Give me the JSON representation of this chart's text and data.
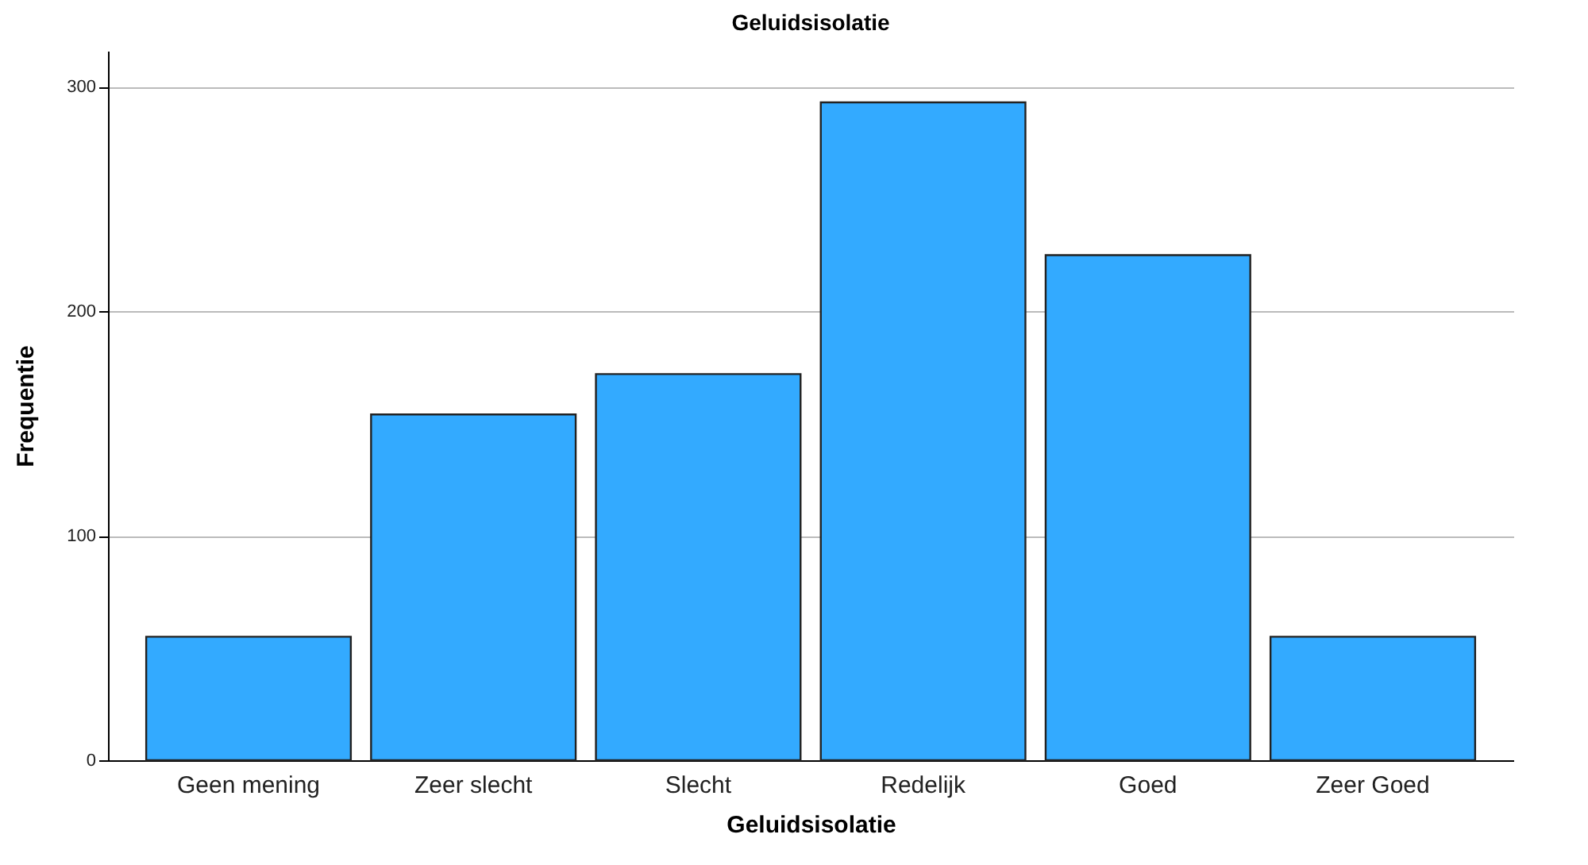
{
  "chart_data": {
    "type": "bar",
    "title": "Geluidsisolatie",
    "xlabel": "Geluidsisolatie",
    "ylabel": "Frequentie",
    "categories": [
      "Geen mening",
      "Zeer slecht",
      "Slecht",
      "Redelijk",
      "Goed",
      "Zeer Goed"
    ],
    "values": [
      55,
      154,
      172,
      293,
      225,
      55
    ],
    "color": "#33aaff",
    "ylim": [
      0,
      316
    ],
    "yticks": [
      0,
      100,
      200,
      300
    ],
    "grid": "y"
  }
}
